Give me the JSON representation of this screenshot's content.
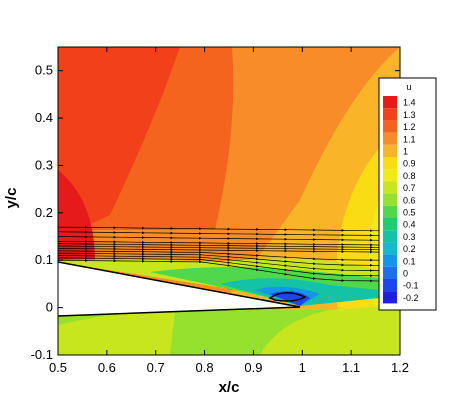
{
  "chart_data": {
    "type": "heatmap",
    "title": "",
    "xlabel": "x/c",
    "ylabel": "y/c",
    "xlim": [
      0.5,
      1.2
    ],
    "ylim": [
      -0.1,
      0.55
    ],
    "x_ticks": [
      "0.5",
      "0.6",
      "0.7",
      "0.8",
      "0.9",
      "1",
      "1.1",
      "1.2"
    ],
    "y_ticks": [
      "-0.1",
      "0",
      "0.1",
      "0.2",
      "0.3",
      "0.4",
      "0.5"
    ],
    "x_tick_values": [
      0.5,
      0.6,
      0.7,
      0.8,
      0.9,
      1.0,
      1.1,
      1.2
    ],
    "y_tick_values": [
      -0.1,
      0,
      0.1,
      0.2,
      0.3,
      0.4,
      0.5
    ],
    "grid": false,
    "legend": {
      "position": "right",
      "variable": "u",
      "levels": [
        "1.4",
        "1.3",
        "1.2",
        "1.1",
        "1",
        "0.9",
        "0.8",
        "0.7",
        "0.6",
        "0.5",
        "0.4",
        "0.3",
        "0.2",
        "0.1",
        "0",
        "-0.1",
        "-0.2"
      ],
      "level_values": [
        1.4,
        1.3,
        1.2,
        1.1,
        1.0,
        0.9,
        0.8,
        0.7,
        0.6,
        0.5,
        0.4,
        0.3,
        0.2,
        0.1,
        0.0,
        -0.1,
        -0.2
      ],
      "colors": [
        "#e61a1a",
        "#f2401a",
        "#f5641e",
        "#f78c28",
        "#fab428",
        "#fadc14",
        "#f0eb14",
        "#c8e61e",
        "#96e12d",
        "#50d74b",
        "#1ecd73",
        "#14c3a5",
        "#14b9cd",
        "#1496e6",
        "#1e6ef0",
        "#1e46f0",
        "#1e1ee6"
      ]
    },
    "streamline_y_start": [
      0.1,
      0.105,
      0.11,
      0.115,
      0.12,
      0.125,
      0.13,
      0.135,
      0.14,
      0.15,
      0.16,
      0.17
    ]
  }
}
